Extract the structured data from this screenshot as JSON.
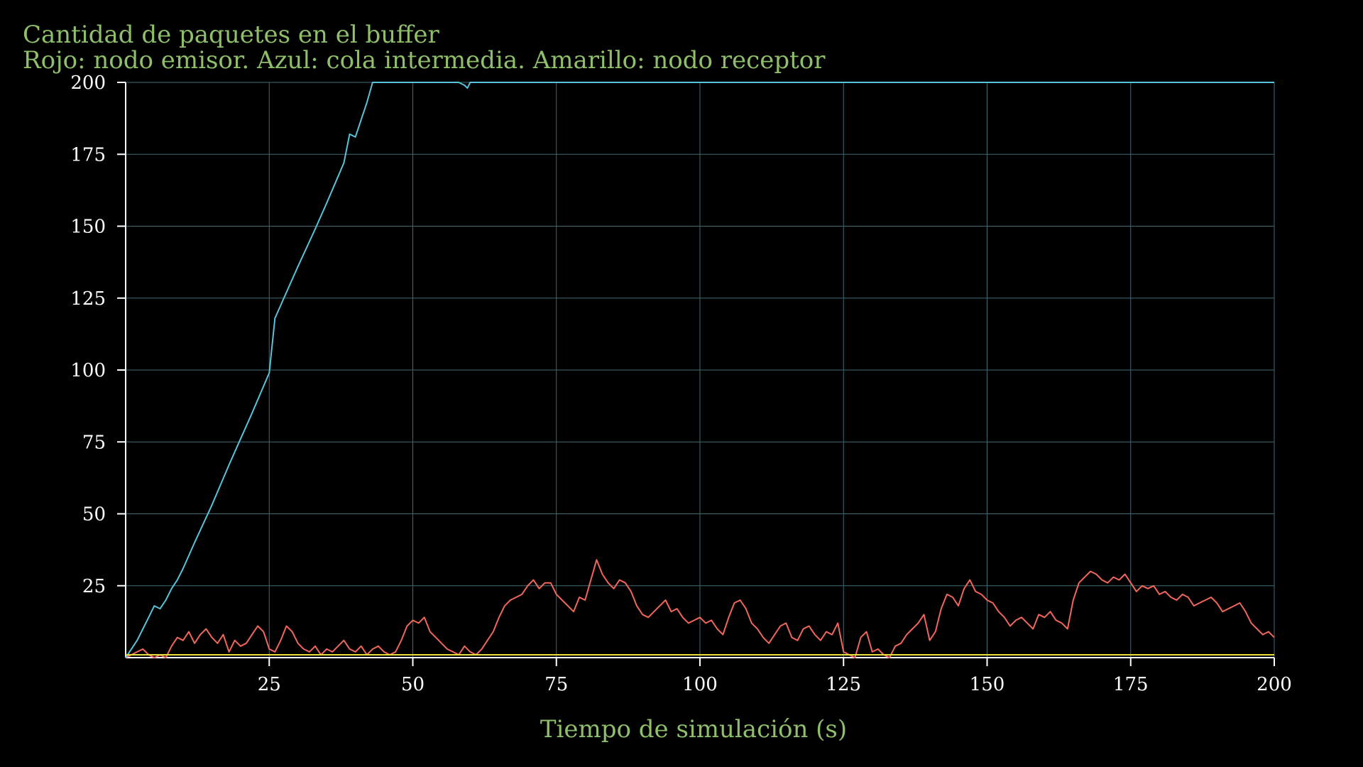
{
  "chart_data": {
    "type": "line",
    "title": "Cantidad de paquetes en el buffer",
    "subtitle": "Rojo: nodo emisor. Azul: cola intermedia. Amarillo: nodo receptor",
    "xlabel": "Tiempo de simulación (s)",
    "ylabel": "",
    "xlim": [
      0,
      200
    ],
    "ylim": [
      0,
      200
    ],
    "xticks": [
      25,
      50,
      75,
      100,
      125,
      150,
      175,
      200
    ],
    "yticks": [
      25,
      50,
      75,
      100,
      125,
      150,
      175,
      200
    ],
    "grid": true,
    "colors": {
      "background": "#000000",
      "text_accent": "#8fbf6a",
      "axis": "#ffffff",
      "grid": "#3f6b73",
      "red": "#f0675b",
      "blue": "#5ac3dc",
      "yellow": "#e6df3a"
    },
    "series": [
      {
        "color": "red",
        "x": [
          0,
          1,
          2,
          3,
          4,
          5,
          6,
          7,
          8,
          9,
          10,
          11,
          12,
          13,
          14,
          15,
          16,
          17,
          18,
          19,
          20,
          21,
          22,
          23,
          24,
          25,
          26,
          27,
          28,
          29,
          30,
          31,
          32,
          33,
          34,
          35,
          36,
          37,
          38,
          39,
          40,
          41,
          42,
          43,
          44,
          45,
          46,
          47,
          48,
          49,
          50,
          51,
          52,
          53,
          54,
          55,
          56,
          57,
          58,
          59,
          60,
          61,
          62,
          63,
          64,
          65,
          66,
          67,
          68,
          69,
          70,
          71,
          72,
          73,
          74,
          75,
          76,
          77,
          78,
          79,
          80,
          81,
          82,
          83,
          84,
          85,
          86,
          87,
          88,
          89,
          90,
          91,
          92,
          93,
          94,
          95,
          96,
          97,
          98,
          99,
          100,
          101,
          102,
          103,
          104,
          105,
          106,
          107,
          108,
          109,
          110,
          111,
          112,
          113,
          114,
          115,
          116,
          117,
          118,
          119,
          120,
          121,
          122,
          123,
          124,
          125,
          126,
          127,
          128,
          129,
          130,
          131,
          132,
          133,
          134,
          135,
          136,
          137,
          138,
          139,
          140,
          141,
          142,
          143,
          144,
          145,
          146,
          147,
          148,
          149,
          150,
          151,
          152,
          153,
          154,
          155,
          156,
          157,
          158,
          159,
          160,
          161,
          162,
          163,
          164,
          165,
          166,
          167,
          168,
          169,
          170,
          171,
          172,
          173,
          174,
          175,
          176,
          177,
          178,
          179,
          180,
          181,
          182,
          183,
          184,
          185,
          186,
          187,
          188,
          189,
          190,
          191,
          192,
          193,
          194,
          195,
          196,
          197,
          198,
          199,
          200
        ],
        "values": [
          0,
          1,
          2,
          3,
          1,
          0,
          1,
          0,
          4,
          7,
          6,
          9,
          5,
          8,
          10,
          7,
          5,
          8,
          2,
          6,
          4,
          5,
          8,
          11,
          9,
          3,
          2,
          6,
          11,
          9,
          5,
          3,
          2,
          4,
          1,
          3,
          2,
          4,
          6,
          3,
          2,
          4,
          1,
          3,
          4,
          2,
          1,
          2,
          6,
          11,
          13,
          12,
          14,
          9,
          7,
          5,
          3,
          2,
          1,
          4,
          2,
          1,
          3,
          6,
          9,
          14,
          18,
          20,
          21,
          22,
          25,
          27,
          24,
          26,
          26,
          22,
          20,
          18,
          16,
          21,
          20,
          27,
          34,
          29,
          26,
          24,
          27,
          26,
          23,
          18,
          15,
          14,
          16,
          18,
          20,
          16,
          17,
          14,
          12,
          13,
          14,
          12,
          13,
          10,
          8,
          14,
          19,
          20,
          17,
          12,
          10,
          7,
          5,
          8,
          11,
          12,
          7,
          6,
          10,
          11,
          8,
          6,
          9,
          8,
          12,
          2,
          1,
          0,
          7,
          9,
          2,
          3,
          1,
          0,
          4,
          5,
          8,
          10,
          12,
          15,
          6,
          9,
          17,
          22,
          21,
          18,
          24,
          27,
          23,
          22,
          20,
          19,
          16,
          14,
          11,
          13,
          14,
          12,
          10,
          15,
          14,
          16,
          13,
          12,
          10,
          20,
          26,
          28,
          30,
          29,
          27,
          26,
          28,
          27,
          29,
          26,
          23,
          25,
          24,
          25,
          22,
          23,
          21,
          20,
          22,
          21,
          18,
          19,
          20,
          21,
          19,
          16,
          17,
          18,
          19,
          16,
          12,
          10,
          8,
          9,
          7
        ]
      },
      {
        "color": "blue",
        "x": [
          0,
          1,
          2,
          3,
          4,
          5,
          6,
          7,
          8,
          9,
          10,
          12,
          15,
          18,
          20,
          22,
          25,
          26,
          28,
          30,
          33,
          35,
          38,
          39,
          40,
          42,
          43,
          44,
          45,
          50,
          55,
          58,
          59,
          59.5,
          60,
          61,
          62,
          65,
          70,
          75,
          80,
          90,
          100,
          110,
          120,
          130,
          140,
          150,
          160,
          170,
          180,
          190,
          200
        ],
        "values": [
          0,
          3,
          6,
          10,
          14,
          18,
          17,
          20,
          24,
          27,
          31,
          40,
          53,
          67,
          76,
          85,
          99,
          118,
          127,
          136,
          149,
          158,
          172,
          182,
          181,
          193,
          200,
          200,
          200,
          200,
          200,
          200,
          199,
          198,
          200,
          200,
          200,
          200,
          200,
          200,
          200,
          200,
          200,
          200,
          200,
          200,
          200,
          200,
          200,
          200,
          200,
          200,
          200
        ]
      },
      {
        "color": "yellow",
        "x": [
          0,
          200
        ],
        "values": [
          1,
          1
        ]
      }
    ]
  }
}
